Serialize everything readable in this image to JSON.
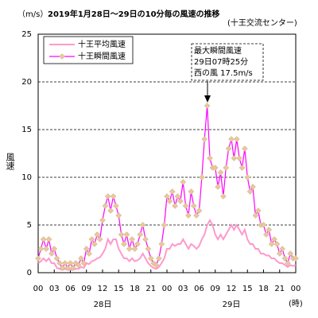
{
  "chart_data": {
    "type": "line",
    "title": "2019年1月28日～29日の10分毎の風速の推移",
    "subtitle": "(十王交流センター)",
    "y_unit": "（m/s）",
    "ylabel": "風速",
    "x_unit": "(時)",
    "date_labels": [
      "28日",
      "29日"
    ],
    "annotation": [
      "最大瞬間風速",
      "29日07時25分",
      "西の風 17.5m/s"
    ],
    "x": [
      0,
      0.5,
      1,
      1.5,
      2,
      2.5,
      3,
      3.5,
      4,
      4.5,
      5,
      5.5,
      6,
      6.5,
      7,
      7.5,
      8,
      8.5,
      9,
      9.5,
      10,
      10.5,
      11,
      11.5,
      12,
      12.5,
      13,
      13.5,
      14,
      14.5,
      15,
      15.5,
      16,
      16.5,
      17,
      17.5,
      18,
      18.5,
      19,
      19.5,
      20,
      20.5,
      21,
      21.5,
      22,
      22.5,
      23,
      23.5,
      24,
      24.5,
      25,
      25.5,
      26,
      26.5,
      27,
      27.5,
      28,
      28.5,
      29,
      29.5,
      30,
      30.5,
      31,
      31.5,
      32,
      32.5,
      33,
      33.5,
      34,
      34.5,
      35,
      35.5,
      36,
      36.5,
      37,
      37.5,
      38,
      38.5,
      39,
      39.5,
      40,
      40.5,
      41,
      41.5,
      42,
      42.5,
      43,
      43.5,
      44,
      44.5,
      45,
      45.5,
      46,
      46.5,
      47,
      47.5,
      48
    ],
    "series": [
      {
        "name": "十王平均風速",
        "color": "#ff99cc",
        "values": [
          1,
          1.2,
          1.5,
          1.2,
          1.5,
          1,
          1,
          0.5,
          0.4,
          0.3,
          0.4,
          0.3,
          0.3,
          0.3,
          0.4,
          0.4,
          0.6,
          0.5,
          1,
          0.9,
          1.2,
          1.3,
          1.5,
          1.6,
          2,
          2.5,
          3.5,
          3,
          3.5,
          3.5,
          2.5,
          2,
          1.5,
          1.5,
          1.2,
          1.5,
          1.2,
          1.3,
          1.5,
          2,
          1.5,
          1,
          0.7,
          0.5,
          0.4,
          0.6,
          1,
          1.5,
          2.5,
          2.5,
          3,
          2.8,
          3,
          3,
          3.5,
          3,
          2.5,
          3,
          2.8,
          2.5,
          2.8,
          3.5,
          4,
          5,
          5.5,
          5,
          4,
          3.5,
          4,
          3.5,
          4,
          4.5,
          5,
          4.5,
          5,
          4.5,
          4,
          4.5,
          3.5,
          3,
          3,
          2.5,
          2.5,
          2,
          2,
          1.8,
          1.8,
          1.5,
          1.5,
          1.2,
          1,
          1,
          0.8,
          0.6,
          0.8,
          0.7,
          0.8
        ]
      },
      {
        "name": "十王瞬間風速",
        "color": "#ff00ff",
        "marker_color": "#e8c8a0",
        "values": [
          1.5,
          2.5,
          3.5,
          2.5,
          3.5,
          2,
          2.5,
          1.5,
          1,
          0.5,
          1,
          0.5,
          1,
          0.5,
          1,
          0.8,
          1.5,
          1,
          2.5,
          2,
          3.5,
          3,
          4,
          3.5,
          5.5,
          7,
          8,
          6.5,
          8,
          7,
          6,
          4,
          3,
          4,
          2.5,
          3.5,
          2.5,
          3,
          4,
          5,
          3.5,
          2.5,
          1.5,
          1,
          0.8,
          1.5,
          3,
          5,
          8,
          7.5,
          8.5,
          7,
          8,
          7.5,
          9.5,
          7,
          6,
          8.5,
          7,
          6,
          6.5,
          10,
          14,
          17.5,
          12,
          11,
          11,
          9,
          10.5,
          8,
          11,
          13,
          14,
          12,
          14,
          12,
          11,
          13,
          10,
          8.5,
          9,
          6,
          6.5,
          5,
          5,
          4,
          4.5,
          3,
          3.5,
          3,
          2,
          2.5,
          1.5,
          1,
          2,
          1.5,
          1.5
        ]
      }
    ],
    "xlim": [
      0,
      48
    ],
    "xticks": [
      {
        "value": 0,
        "label": "00"
      },
      {
        "value": 3,
        "label": "03"
      },
      {
        "value": 6,
        "label": "06"
      },
      {
        "value": 9,
        "label": "09"
      },
      {
        "value": 12,
        "label": "12"
      },
      {
        "value": 15,
        "label": "15"
      },
      {
        "value": 18,
        "label": "18"
      },
      {
        "value": 21,
        "label": "21"
      },
      {
        "value": 24,
        "label": "00"
      },
      {
        "value": 27,
        "label": "03"
      },
      {
        "value": 30,
        "label": "06"
      },
      {
        "value": 33,
        "label": "09"
      },
      {
        "value": 36,
        "label": "12"
      },
      {
        "value": 39,
        "label": "15"
      },
      {
        "value": 42,
        "label": "18"
      },
      {
        "value": 45,
        "label": "21"
      },
      {
        "value": 48,
        "label": "00"
      }
    ],
    "ylim": [
      0,
      25
    ],
    "yticks": [
      0,
      5,
      10,
      15,
      20,
      25
    ],
    "grid": true
  }
}
